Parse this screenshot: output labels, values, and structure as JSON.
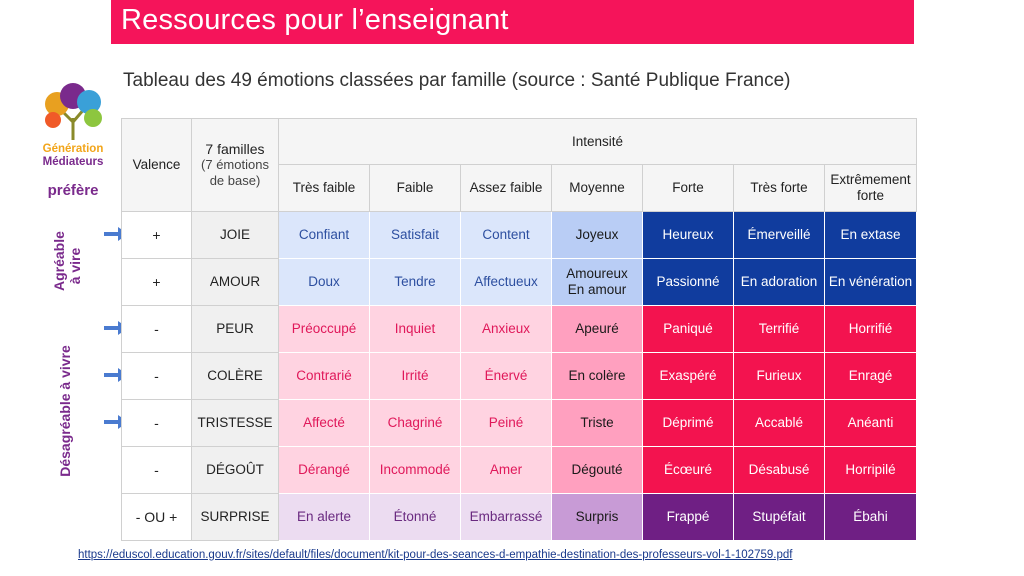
{
  "header": {
    "title": "Ressources pour l’enseignant",
    "subtitle": "Tableau des 49 émotions classées par famille (source : Santé Publique France)"
  },
  "logo": {
    "line1": "Génération",
    "line2": "Médiateurs",
    "prefere": "préfère"
  },
  "side_labels": {
    "agreable": "Agréable\nà vire",
    "desagreable": "Désagréable à vivre"
  },
  "table": {
    "col_valence": "Valence",
    "col_familles": "7 familles",
    "col_familles_sub": "(7 émotions\nde base)",
    "col_intensite": "Intensité",
    "intensities": [
      "Très faible",
      "Faible",
      "Assez faible",
      "Moyenne",
      "Forte",
      "Très forte",
      "Extrêmement\nforte"
    ],
    "rows": [
      {
        "valence": "+",
        "family": "JOIE",
        "arrow": true,
        "emotions": [
          "Confiant",
          "Satisfait",
          "Content",
          "Joyeux",
          "Heureux",
          "Émerveillé",
          "En extase"
        ],
        "colors": [
          "#dbe6fb",
          "#dbe6fb",
          "#dbe6fb",
          "#b9cdf5",
          "#103c9e",
          "#103c9e",
          "#103c9e"
        ],
        "text_colors": [
          "#2d4fa0",
          "#2d4fa0",
          "#2d4fa0",
          "#1a1a1a",
          "#ffffff",
          "#ffffff",
          "#ffffff"
        ]
      },
      {
        "valence": "+",
        "family": "AMOUR",
        "arrow": false,
        "emotions": [
          "Doux",
          "Tendre",
          "Affectueux",
          "Amoureux\nEn amour",
          "Passionné",
          "En adoration",
          "En vénération"
        ],
        "colors": [
          "#dbe6fb",
          "#dbe6fb",
          "#dbe6fb",
          "#b9cdf5",
          "#103c9e",
          "#103c9e",
          "#103c9e"
        ],
        "text_colors": [
          "#2d4fa0",
          "#2d4fa0",
          "#2d4fa0",
          "#1a1a1a",
          "#ffffff",
          "#ffffff",
          "#ffffff"
        ]
      },
      {
        "valence": "-",
        "family": "PEUR",
        "arrow": true,
        "emotions": [
          "Préoccupé",
          "Inquiet",
          "Anxieux",
          "Apeuré",
          "Paniqué",
          "Terrifié",
          "Horrifié"
        ],
        "colors": [
          "#ffd3e1",
          "#ffd3e1",
          "#ffd3e1",
          "#ffa0bf",
          "#f3134f",
          "#f3134f",
          "#f3134f"
        ],
        "text_colors": [
          "#e0185a",
          "#e0185a",
          "#e0185a",
          "#1a1a1a",
          "#ffffff",
          "#ffffff",
          "#ffffff"
        ]
      },
      {
        "valence": "-",
        "family": "COLÈRE",
        "arrow": true,
        "emotions": [
          "Contrarié",
          "Irrité",
          "Énervé",
          "En colère",
          "Exaspéré",
          "Furieux",
          "Enragé"
        ],
        "colors": [
          "#ffd3e1",
          "#ffd3e1",
          "#ffd3e1",
          "#ffa0bf",
          "#f3134f",
          "#f3134f",
          "#f3134f"
        ],
        "text_colors": [
          "#e0185a",
          "#e0185a",
          "#e0185a",
          "#1a1a1a",
          "#ffffff",
          "#ffffff",
          "#ffffff"
        ]
      },
      {
        "valence": "-",
        "family": "TRISTESSE",
        "arrow": true,
        "emotions": [
          "Affecté",
          "Chagriné",
          "Peiné",
          "Triste",
          "Déprimé",
          "Accablé",
          "Anéanti"
        ],
        "colors": [
          "#ffd3e1",
          "#ffd3e1",
          "#ffd3e1",
          "#ffa0bf",
          "#f3134f",
          "#f3134f",
          "#f3134f"
        ],
        "text_colors": [
          "#e0185a",
          "#e0185a",
          "#e0185a",
          "#1a1a1a",
          "#ffffff",
          "#ffffff",
          "#ffffff"
        ]
      },
      {
        "valence": "-",
        "family": "DÉGOÛT",
        "arrow": false,
        "emotions": [
          "Dérangé",
          "Incommodé",
          "Amer",
          "Dégouté",
          "Écœuré",
          "Désabusé",
          "Horripilé"
        ],
        "colors": [
          "#ffd3e1",
          "#ffd3e1",
          "#ffd3e1",
          "#ffa0bf",
          "#f3134f",
          "#f3134f",
          "#f3134f"
        ],
        "text_colors": [
          "#e0185a",
          "#e0185a",
          "#e0185a",
          "#1a1a1a",
          "#ffffff",
          "#ffffff",
          "#ffffff"
        ]
      },
      {
        "valence": "- OU +",
        "family": "SURPRISE",
        "arrow": false,
        "emotions": [
          "En alerte",
          "Étonné",
          "Embarrassé",
          "Surpris",
          "Frappé",
          "Stupéfait",
          "Ébahi"
        ],
        "colors": [
          "#ecdcf1",
          "#ecdcf1",
          "#ecdcf1",
          "#c89bd6",
          "#6f1f84",
          "#6f1f84",
          "#6f1f84"
        ],
        "text_colors": [
          "#6a2a80",
          "#6a2a80",
          "#6a2a80",
          "#1a1a1a",
          "#ffffff",
          "#ffffff",
          "#ffffff"
        ]
      }
    ]
  },
  "footer": {
    "link": "https://eduscol.education.gouv.fr/sites/default/files/document/kit-pour-des-seances-d-empathie-destination-des-professeurs-vol-1-102759.pdf"
  },
  "colors": {
    "banner": "#f5145a",
    "purple": "#7a2a8c",
    "arrow": "#4a7bd0"
  }
}
